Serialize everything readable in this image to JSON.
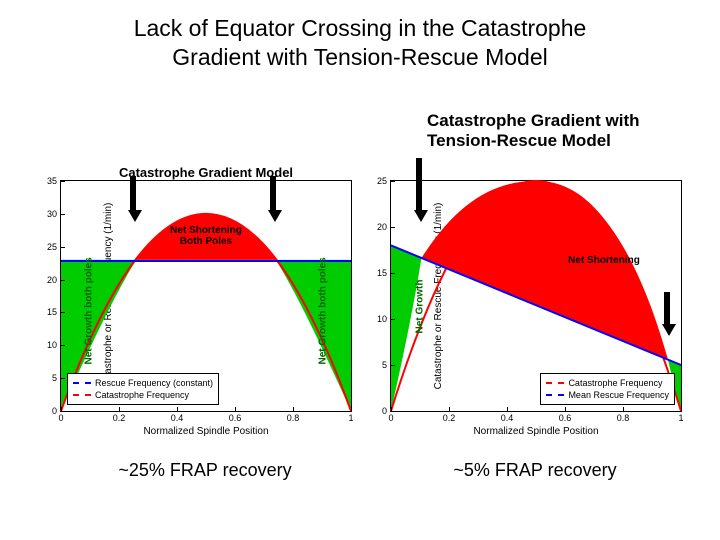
{
  "title_line1": "Lack of Equator Crossing in the Catastrophe",
  "title_line2": "Gradient with Tension-Rescue Model",
  "right_subtitle_line1": "Catastrophe Gradient with",
  "right_subtitle_line2": "Tension-Rescue Model",
  "left": {
    "type": "line+area",
    "title": "Catastrophe Gradient Model",
    "xlabel": "Normalized Spindle Position",
    "ylabel": "Catastrophe or Rescue Frequency (1/min)",
    "xlim": [
      0,
      1
    ],
    "ylim": [
      0,
      35
    ],
    "xticks": [
      0,
      0.2,
      0.4,
      0.6,
      0.8,
      1
    ],
    "yticks": [
      0,
      5,
      10,
      15,
      20,
      25,
      30,
      35
    ],
    "background_color": "#ffffff",
    "catastrophe_color": "#ff0000",
    "rescue_color": "#0000ff",
    "growth_fill": "#00cc00",
    "shortening_fill": "#ff0000",
    "catastrophe_curve": {
      "amplitude": 30,
      "baseline": 0
    },
    "rescue_constant": 23,
    "region_labels": {
      "net_shortening": "Net Shortening\nBoth Poles",
      "net_growth_left": "Net Growth both poles",
      "net_growth_right": "Net Growth both poles"
    },
    "legend": {
      "items": [
        {
          "label": "Rescue Frequency (constant)",
          "color": "#0000ff",
          "style": "dashed"
        },
        {
          "label": "Catastrophe Frequency",
          "color": "#ff0000",
          "style": "dashed"
        }
      ],
      "position": "lower-left"
    },
    "caption": "~25% FRAP recovery"
  },
  "right": {
    "type": "line+area",
    "title": "",
    "xlabel": "Normalized Spindle Position",
    "ylabel": "Catastrophe or Rescue Frequency (1/min)",
    "xlim": [
      0,
      1
    ],
    "ylim": [
      0,
      25
    ],
    "xticks": [
      0,
      0.2,
      0.4,
      0.6,
      0.8,
      1
    ],
    "yticks": [
      0,
      5,
      10,
      15,
      20,
      25
    ],
    "background_color": "#ffffff",
    "catastrophe_color": "#ff0000",
    "rescue_color": "#0000ff",
    "growth_fill": "#00cc00",
    "shortening_fill": "#ff0000",
    "catastrophe_curve": {
      "amplitude": 25,
      "baseline": 0
    },
    "rescue_line": {
      "start": 18,
      "end": 5
    },
    "region_labels": {
      "net_growth": "Net Growth",
      "net_shortening": "Net Shortening"
    },
    "legend": {
      "items": [
        {
          "label": "Catastrophe Frequency",
          "color": "#ff0000",
          "style": "dashed"
        },
        {
          "label": "Mean Rescue Frequency",
          "color": "#0000ff",
          "style": "dashed"
        }
      ],
      "position": "lower-right"
    },
    "caption": "~5% FRAP recovery"
  },
  "fonts": {
    "title_pt": 23,
    "subtitle_pt": 17,
    "axis_label_pt": 10,
    "tick_pt": 9,
    "caption_pt": 18
  }
}
